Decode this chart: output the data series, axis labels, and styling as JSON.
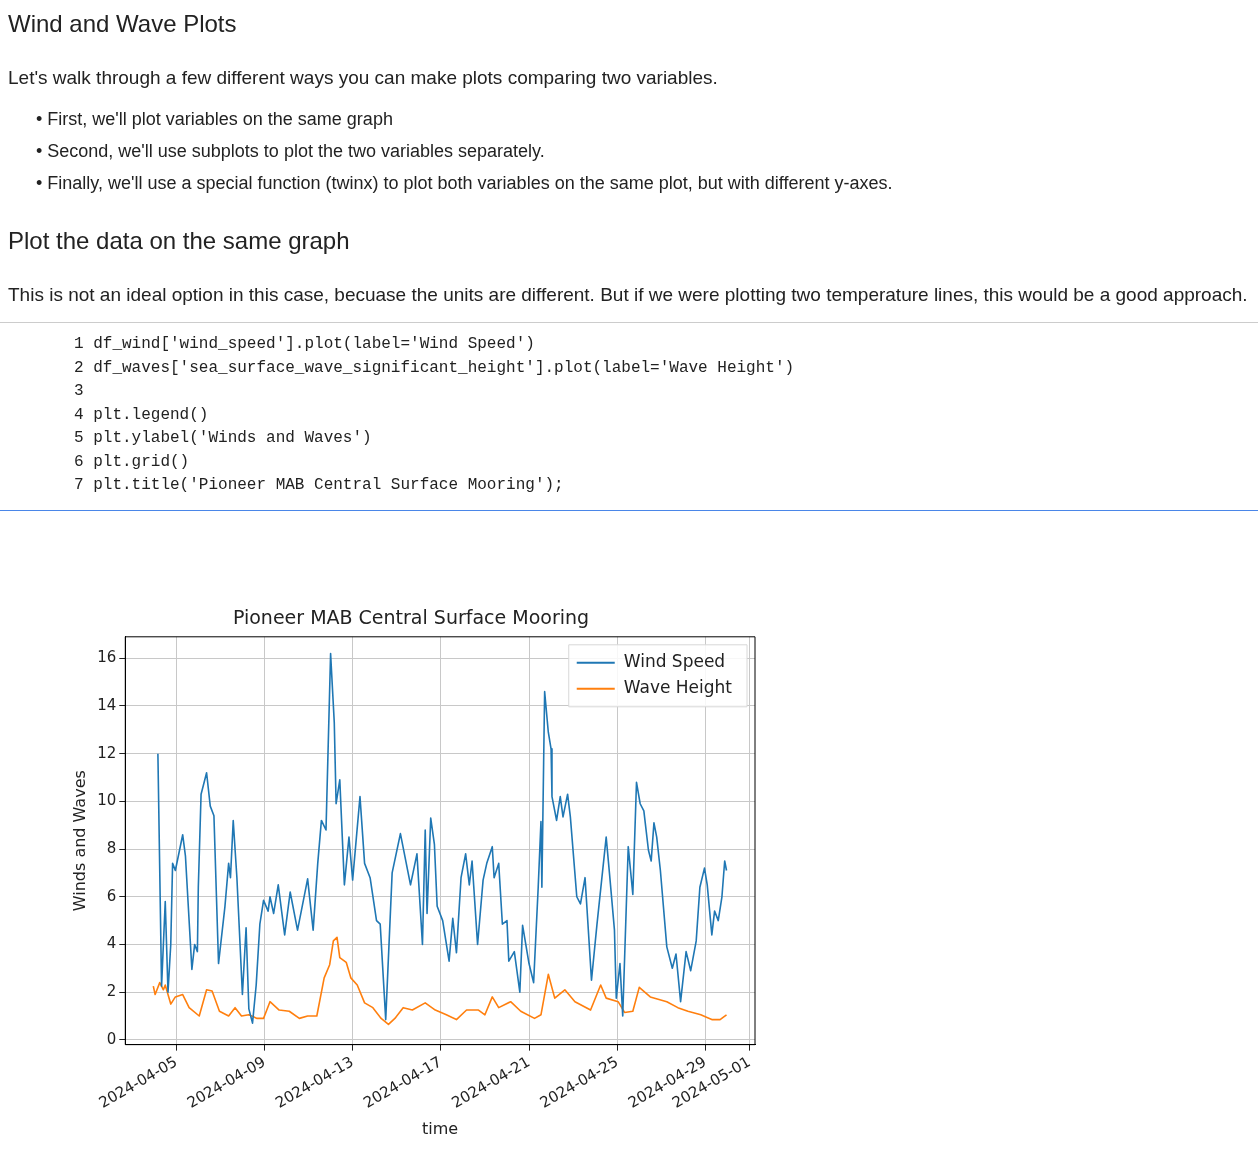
{
  "chart_data": {
    "type": "line",
    "title": "Pioneer MAB Central Surface Mooring",
    "xlabel": "time",
    "ylabel": "Winds and Waves",
    "annotations": [
      "Wind and Wave Plots",
      "Let's walk through a few different ways you can make plots comparing two variables.",
      "• First, we'll plot variables on the same graph",
      "• Second, we'll use subplots to plot the two variables separately.",
      "• Finally, we'll use a special function (twinx) to plot both variables on the same plot, but with different y-axes.",
      "Plot the data on the same graph",
      "This is not an ideal option in this case, becuase the units are different. But if we were plotting two temperature lines, this would be a good approach.",
      "1 df_wind['wind_speed'].plot(label='Wind Speed')",
      "2 df_waves['sea_surface_wave_significant_height'].plot(label='Wave Height')",
      "3",
      "4 plt.legend()",
      "5 plt.ylabel('Winds and Waves')",
      "6 plt.grid()",
      "7 plt.title('Pioneer MAB Central Surface Mooring');"
    ],
    "series": [
      {
        "name": "Wind Speed",
        "color": "#1f77b4",
        "x": [
          "2024-04-04T04:00",
          "2024-04-04T08:00",
          "2024-04-04T12:00",
          "2024-04-04T15:00",
          "2024-04-04T18:00",
          "2024-04-04T20:00",
          "2024-04-04T23:00",
          "2024-04-05T07:00",
          "2024-04-05T10:00",
          "2024-04-05T17:00",
          "2024-04-05T20:00",
          "2024-04-05T23:00",
          "2024-04-06T00:00",
          "2024-04-06T03:00",
          "2024-04-06T09:00",
          "2024-04-06T13:00",
          "2024-04-06T17:00",
          "2024-04-06T22:00",
          "2024-04-07T05:00",
          "2024-04-07T09:00",
          "2024-04-07T11:00",
          "2024-04-07T14:00",
          "2024-04-07T18:00",
          "2024-04-08T00:00",
          "2024-04-08T04:00",
          "2024-04-08T07:00",
          "2024-04-08T11:00",
          "2024-04-08T15:00",
          "2024-04-08T19:00",
          "2024-04-08T23:00",
          "2024-04-09T04:00",
          "2024-04-09T06:00",
          "2024-04-09T10:00",
          "2024-04-09T15:00",
          "2024-04-09T22:00",
          "2024-04-10T04:00",
          "2024-04-10T12:00",
          "2024-04-10T23:00",
          "2024-04-11T05:00",
          "2024-04-11T10:00",
          "2024-04-11T14:00",
          "2024-04-11T19:00",
          "2024-04-12T00:00",
          "2024-04-12T04:00",
          "2024-04-12T06:00",
          "2024-04-12T10:00",
          "2024-04-12T15:00",
          "2024-04-12T20:00",
          "2024-04-13T00:00",
          "2024-04-13T08:00",
          "2024-04-13T13:00",
          "2024-04-13T19:00",
          "2024-04-14T02:00",
          "2024-04-14T06:00",
          "2024-04-14T12:00",
          "2024-04-14T19:00",
          "2024-04-15T04:00",
          "2024-04-15T15:00",
          "2024-04-15T22:00",
          "2024-04-16T04:00",
          "2024-04-16T07:00",
          "2024-04-16T09:00",
          "2024-04-16T13:00",
          "2024-04-16T17:00",
          "2024-04-16T20:00",
          "2024-04-17T02:00",
          "2024-04-17T09:00",
          "2024-04-17T13:00",
          "2024-04-17T17:00",
          "2024-04-17T22:00",
          "2024-04-18T03:00",
          "2024-04-18T07:00",
          "2024-04-18T10:00",
          "2024-04-18T16:00",
          "2024-04-18T22:00",
          "2024-04-19T02:00",
          "2024-04-19T08:00",
          "2024-04-19T10:00",
          "2024-04-19T15:00",
          "2024-04-19T19:00",
          "2024-04-20T00:00",
          "2024-04-20T02:00",
          "2024-04-20T08:00",
          "2024-04-20T14:00",
          "2024-04-20T17:00",
          "2024-04-21T00:00",
          "2024-04-21T05:00",
          "2024-04-21T10:00",
          "2024-04-21T13:00",
          "2024-04-21T14:00",
          "2024-04-21T17:00",
          "2024-04-21T21:00",
          "2024-04-22T00:00",
          "2024-04-22T01:00",
          "2024-04-22T06:00",
          "2024-04-22T10:00",
          "2024-04-22T13:00",
          "2024-04-22T18:00",
          "2024-04-22T21:00",
          "2024-04-23T04:00",
          "2024-04-23T08:00",
          "2024-04-23T13:00",
          "2024-04-23T20:00",
          "2024-04-24T02:00",
          "2024-04-24T12:00",
          "2024-04-24T16:00",
          "2024-04-24T21:00",
          "2024-04-24T23:00",
          "2024-04-25T03:00",
          "2024-04-25T06:00",
          "2024-04-25T12:00",
          "2024-04-25T17:00",
          "2024-04-25T21:00",
          "2024-04-26T01:00",
          "2024-04-26T05:00",
          "2024-04-26T10:00",
          "2024-04-26T13:00",
          "2024-04-26T16:00",
          "2024-04-26T19:00",
          "2024-04-26T23:00",
          "2024-04-27T06:00",
          "2024-04-27T12:00",
          "2024-04-27T16:00",
          "2024-04-27T21:00",
          "2024-04-28T03:00",
          "2024-04-28T08:00",
          "2024-04-28T14:00",
          "2024-04-28T18:00",
          "2024-04-28T23:00",
          "2024-04-29T02:00",
          "2024-04-29T07:00",
          "2024-04-29T10:00",
          "2024-04-29T14:00",
          "2024-04-29T18:00",
          "2024-04-29T21:00",
          "2024-04-29T23:00"
        ],
        "values": [
          12.0,
          2.25,
          5.8,
          2.0,
          4.0,
          7.4,
          7.1,
          8.6,
          7.7,
          2.95,
          4.0,
          3.7,
          6.4,
          10.3,
          11.2,
          9.8,
          9.4,
          3.2,
          5.6,
          7.4,
          6.8,
          9.2,
          6.8,
          1.9,
          4.7,
          1.3,
          0.7,
          2.3,
          4.85,
          5.85,
          5.4,
          6.0,
          5.3,
          6.5,
          4.4,
          6.2,
          4.6,
          6.75,
          4.6,
          7.4,
          9.2,
          8.8,
          16.2,
          13.3,
          9.9,
          10.9,
          6.5,
          8.5,
          6.7,
          10.2,
          7.4,
          6.8,
          5.0,
          4.85,
          0.85,
          7.0,
          8.65,
          6.5,
          7.8,
          4.0,
          8.8,
          5.3,
          9.3,
          8.2,
          5.6,
          5.0,
          3.3,
          5.1,
          3.65,
          6.8,
          7.8,
          6.5,
          7.5,
          4.0,
          6.7,
          7.4,
          8.1,
          6.8,
          7.4,
          4.85,
          5.0,
          3.3,
          3.7,
          2.0,
          4.8,
          3.2,
          2.4,
          6.4,
          9.15,
          6.4,
          14.6,
          12.9,
          12.2,
          10.2,
          9.2,
          10.2,
          9.35,
          10.3,
          9.35,
          6.0,
          5.7,
          6.8,
          2.5,
          4.85,
          8.5,
          6.8,
          4.6,
          1.75,
          3.2,
          1.0,
          8.1,
          6.1,
          10.8,
          9.9,
          9.6,
          7.95,
          7.5,
          9.1,
          8.5,
          7.1,
          3.9,
          3.0,
          3.6,
          1.6,
          3.7,
          2.9,
          4.15,
          6.4,
          7.2,
          6.5,
          4.4,
          5.4,
          5.0,
          6.0,
          7.5,
          7.1
        ]
      },
      {
        "name": "Wave Height",
        "color": "#ff7f0e",
        "x": [
          "2024-04-03T23:00",
          "2024-04-04T01:00",
          "2024-04-04T06:00",
          "2024-04-04T10:00",
          "2024-04-04T12:00",
          "2024-04-04T18:00",
          "2024-04-04T23:00",
          "2024-04-05T07:00",
          "2024-04-05T14:00",
          "2024-04-06T01:00",
          "2024-04-06T09:00",
          "2024-04-06T15:00",
          "2024-04-06T23:00",
          "2024-04-07T09:00",
          "2024-04-07T16:00",
          "2024-04-07T23:00",
          "2024-04-08T07:00",
          "2024-04-08T16:00",
          "2024-04-08T23:00",
          "2024-04-09T06:00",
          "2024-04-09T16:00",
          "2024-04-10T03:00",
          "2024-04-10T14:00",
          "2024-04-10T23:00",
          "2024-04-11T09:00",
          "2024-04-11T17:00",
          "2024-04-11T23:00",
          "2024-04-12T03:00",
          "2024-04-12T07:00",
          "2024-04-12T10:00",
          "2024-04-12T17:00",
          "2024-04-12T22:00",
          "2024-04-13T05:00",
          "2024-04-13T13:00",
          "2024-04-13T22:00",
          "2024-04-14T07:00",
          "2024-04-14T15:00",
          "2024-04-14T22:00",
          "2024-04-15T07:00",
          "2024-04-15T17:00",
          "2024-04-16T07:00",
          "2024-04-16T18:00",
          "2024-04-17T06:00",
          "2024-04-17T17:00",
          "2024-04-18T04:00",
          "2024-04-18T17:00",
          "2024-04-19T00:00",
          "2024-04-19T08:00",
          "2024-04-19T15:00",
          "2024-04-20T04:00",
          "2024-04-20T15:00",
          "2024-04-21T06:00",
          "2024-04-21T13:00",
          "2024-04-21T21:00",
          "2024-04-22T04:00",
          "2024-04-22T15:00",
          "2024-04-23T02:00",
          "2024-04-23T19:00",
          "2024-04-24T06:00",
          "2024-04-24T12:00",
          "2024-04-25T01:00",
          "2024-04-25T08:00",
          "2024-04-25T17:00",
          "2024-04-26T00:00",
          "2024-04-26T12:00",
          "2024-04-27T06:00",
          "2024-04-27T18:00",
          "2024-04-28T05:00",
          "2024-04-28T19:00",
          "2024-04-29T07:00",
          "2024-04-29T16:00",
          "2024-04-29T23:00"
        ],
        "values": [
          2.25,
          1.9,
          2.4,
          2.1,
          2.3,
          1.5,
          1.8,
          1.9,
          1.35,
          1.0,
          2.1,
          2.05,
          1.2,
          1.0,
          1.35,
          1.0,
          1.05,
          0.9,
          0.9,
          1.6,
          1.25,
          1.2,
          0.9,
          1.0,
          1.0,
          2.6,
          3.15,
          4.15,
          4.3,
          3.45,
          3.25,
          2.6,
          2.3,
          1.55,
          1.35,
          0.9,
          0.65,
          0.9,
          1.35,
          1.25,
          1.55,
          1.25,
          1.05,
          0.85,
          1.25,
          1.25,
          1.05,
          1.8,
          1.35,
          1.6,
          1.2,
          0.9,
          1.05,
          2.75,
          1.75,
          2.1,
          1.6,
          1.25,
          2.3,
          1.75,
          1.6,
          1.15,
          1.2,
          2.2,
          1.8,
          1.6,
          1.35,
          1.2,
          1.05,
          0.85,
          0.85,
          1.05
        ]
      }
    ],
    "xlim": [
      "2024-04-02T16:30",
      "2024-05-01T06:00"
    ],
    "xticks": [
      "2024-04-05",
      "2024-04-09",
      "2024-04-13",
      "2024-04-17",
      "2024-04-21",
      "2024-04-25",
      "2024-04-29",
      "2024-05-01"
    ],
    "ylim": [
      -0.2,
      16.9
    ],
    "yticks": [
      0,
      2,
      4,
      6,
      8,
      10,
      12,
      14,
      16
    ],
    "grid": true,
    "legend": "top right",
    "line_style": "solid",
    "marker": "none"
  }
}
